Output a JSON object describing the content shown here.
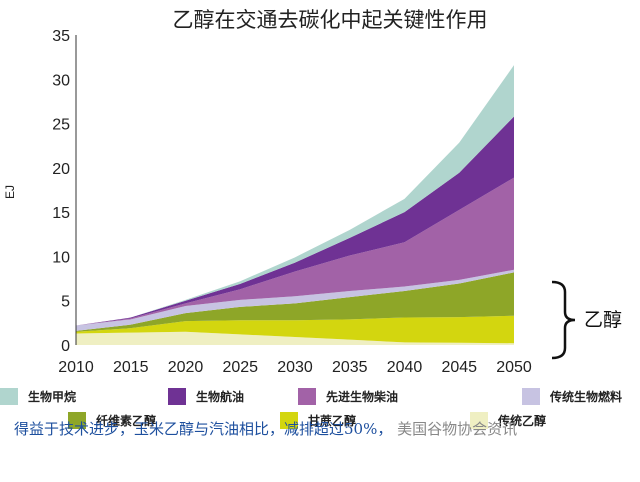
{
  "chart_data": {
    "type": "area",
    "title": "乙醇在交通去碳化中起关键性作用",
    "xlabel": "",
    "ylabel": "EJ",
    "x": [
      2010,
      2015,
      2020,
      2025,
      2030,
      2035,
      2040,
      2045,
      2050
    ],
    "ylim": [
      0,
      35
    ],
    "yticks": [
      0,
      5,
      10,
      15,
      20,
      25,
      30,
      35
    ],
    "stacked": true,
    "series": [
      {
        "name": "传统乙醇",
        "color": "#efefc2",
        "values": [
          1.3,
          1.4,
          1.5,
          1.2,
          0.9,
          0.6,
          0.3,
          0.25,
          0.2
        ]
      },
      {
        "name": "甘蔗乙醇",
        "color": "#d3d60f",
        "values": [
          0.2,
          0.5,
          1.2,
          1.6,
          1.9,
          2.3,
          2.8,
          2.9,
          3.1
        ]
      },
      {
        "name": "纤维素乙醇",
        "color": "#8ea628",
        "values": [
          0.1,
          0.4,
          0.9,
          1.5,
          1.9,
          2.5,
          3.0,
          3.8,
          4.9
        ]
      },
      {
        "name": "传统生物燃料",
        "color": "#c7c3e2",
        "values": [
          0.6,
          0.6,
          0.8,
          0.8,
          0.8,
          0.7,
          0.5,
          0.4,
          0.3
        ]
      },
      {
        "name": "先进生物柴油",
        "color": "#a262a7",
        "values": [
          0.0,
          0.1,
          0.3,
          1.2,
          2.8,
          4.0,
          5.0,
          7.9,
          10.4
        ]
      },
      {
        "name": "生物航油",
        "color": "#6f3294",
        "values": [
          0.0,
          0.1,
          0.3,
          0.6,
          1.0,
          2.0,
          3.4,
          4.2,
          6.9
        ]
      },
      {
        "name": "生物甲烷",
        "color": "#b0d5ce",
        "values": [
          0.0,
          0.0,
          0.1,
          0.3,
          0.6,
          0.9,
          1.5,
          3.4,
          5.8
        ]
      }
    ],
    "legend_order": [
      "生物甲烷",
      "生物航油",
      "先进生物柴油",
      "传统生物燃料",
      "纤维素乙醇",
      "甘蔗乙醇",
      "传统乙醇"
    ],
    "annotation": {
      "text": "乙醇",
      "spans_series": [
        "传统乙醇",
        "甘蔗乙醇",
        "纤维素乙醇"
      ]
    },
    "legend_position": "bottom",
    "grid": false
  },
  "caption": "得益于技术进步，玉米乙醇与汽油相比，减排超过50%，",
  "watermark": "美国谷物协会资讯"
}
